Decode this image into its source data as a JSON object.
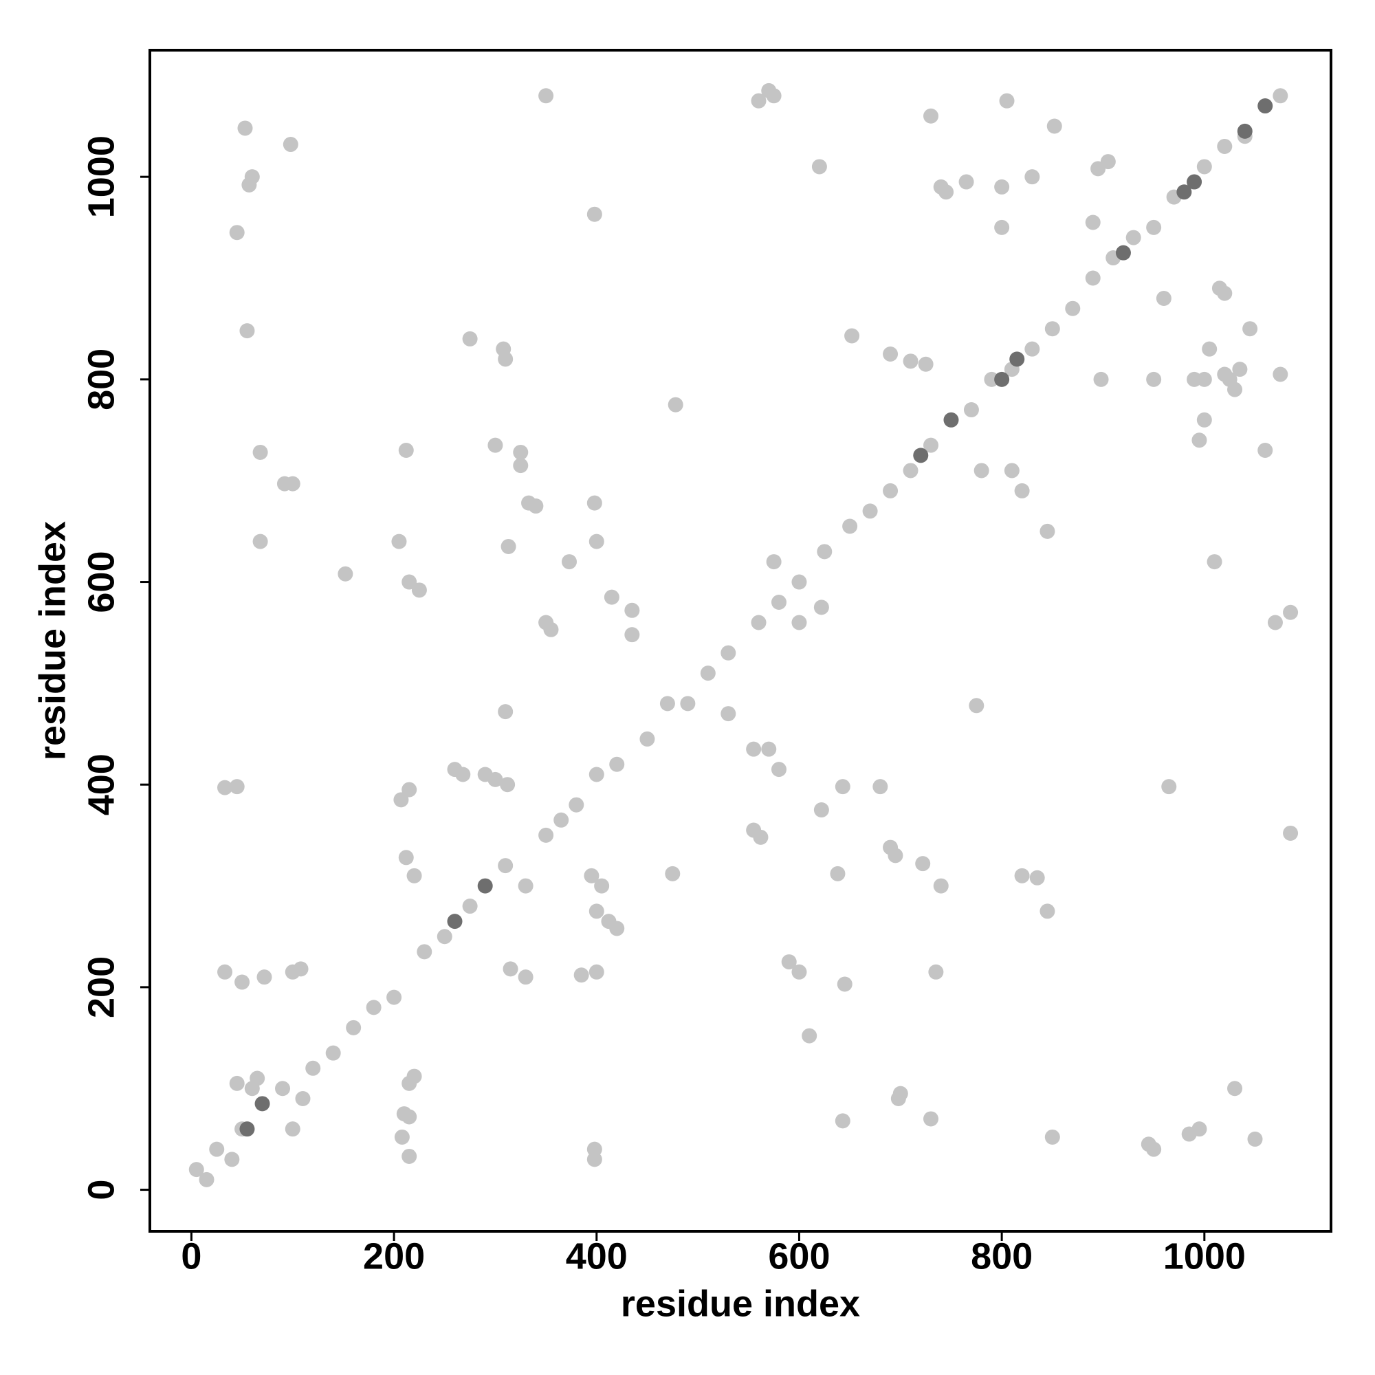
{
  "chart_data": {
    "type": "scatter",
    "x_label": "residue index",
    "y_label": "residue index",
    "xlim": [
      -41,
      1125
    ],
    "ylim": [
      -41,
      1125
    ],
    "xticks": [
      0,
      200,
      400,
      600,
      800,
      1000
    ],
    "yticks": [
      0,
      200,
      400,
      600,
      800,
      1000
    ],
    "grid": false,
    "series": [
      {
        "color": "#c4c4c4",
        "x": [
          33,
          50,
          72,
          100,
          108,
          33,
          45,
          45,
          55,
          57,
          60,
          53,
          98,
          68,
          68,
          92,
          100,
          152,
          205,
          212,
          215,
          225,
          207,
          215,
          212,
          220,
          210,
          208,
          215,
          215,
          215,
          220,
          275,
          308,
          310,
          300,
          325,
          325,
          313,
          333,
          340,
          350,
          350,
          355,
          373,
          398,
          398,
          400,
          415,
          435,
          435,
          478,
          310,
          290,
          300,
          312,
          398,
          398,
          385,
          400,
          405,
          395,
          400,
          412,
          420,
          315,
          330,
          268,
          260,
          475,
          530,
          555,
          570,
          580,
          555,
          562,
          590,
          600,
          610,
          622,
          638,
          643,
          645,
          643,
          560,
          570,
          575,
          620,
          575,
          622,
          600,
          652,
          680,
          690,
          695,
          700,
          698,
          730,
          735,
          722,
          740,
          730,
          740,
          745,
          765,
          775,
          805,
          800,
          800,
          820,
          835,
          845,
          845,
          850,
          852,
          725,
          690,
          710,
          830,
          898,
          905,
          895,
          950,
          945,
          950,
          960,
          965,
          985,
          995,
          995,
          1000,
          1000,
          990,
          1005,
          1010,
          1020,
          1025,
          1030,
          1035,
          1045,
          1030,
          1050,
          1060,
          1075,
          1070,
          1085,
          1085,
          1015,
          1020,
          5,
          15,
          25,
          40,
          50,
          60,
          65,
          45,
          90,
          100,
          110,
          120,
          140,
          160,
          180,
          200,
          230,
          250,
          275,
          310,
          330,
          350,
          365,
          380,
          400,
          420,
          450,
          470,
          490,
          510,
          530,
          560,
          580,
          600,
          625,
          650,
          670,
          690,
          710,
          730,
          770,
          790,
          810,
          830,
          850,
          870,
          890,
          910,
          930,
          950,
          970,
          1000,
          1020,
          1040,
          1075,
          780,
          810,
          820,
          890
        ],
        "y": [
          215,
          205,
          210,
          215,
          218,
          397,
          398,
          945,
          848,
          992,
          1000,
          1048,
          1032,
          728,
          640,
          697,
          697,
          608,
          640,
          730,
          600,
          592,
          385,
          395,
          328,
          310,
          75,
          52,
          33,
          72,
          105,
          112,
          840,
          830,
          820,
          735,
          728,
          715,
          635,
          678,
          675,
          1080,
          560,
          553,
          620,
          963,
          678,
          640,
          585,
          572,
          548,
          775,
          472,
          410,
          405,
          400,
          40,
          30,
          212,
          215,
          300,
          310,
          275,
          265,
          258,
          218,
          210,
          410,
          415,
          312,
          470,
          435,
          435,
          415,
          355,
          348,
          225,
          215,
          152,
          375,
          312,
          398,
          203,
          68,
          1075,
          1085,
          1080,
          1010,
          620,
          575,
          560,
          843,
          398,
          338,
          330,
          95,
          90,
          70,
          215,
          322,
          300,
          1060,
          990,
          985,
          995,
          478,
          1075,
          950,
          990,
          310,
          308,
          275,
          650,
          52,
          1050,
          815,
          825,
          818,
          1000,
          800,
          1015,
          1008,
          40,
          45,
          800,
          880,
          398,
          55,
          60,
          740,
          760,
          800,
          800,
          830,
          620,
          805,
          800,
          790,
          810,
          850,
          100,
          50,
          730,
          805,
          560,
          570,
          352,
          890,
          885,
          20,
          10,
          40,
          30,
          60,
          100,
          110,
          105,
          100,
          60,
          90,
          120,
          135,
          160,
          180,
          190,
          235,
          250,
          280,
          320,
          300,
          350,
          365,
          380,
          410,
          420,
          445,
          480,
          480,
          510,
          530,
          560,
          580,
          600,
          630,
          655,
          670,
          690,
          710,
          735,
          770,
          800,
          810,
          830,
          850,
          870,
          900,
          920,
          940,
          950,
          980,
          1010,
          1030,
          1040,
          1080,
          710,
          710,
          690,
          955
        ]
      },
      {
        "color": "#6e6e6e",
        "x": [
          70,
          55,
          290,
          260,
          800,
          815,
          920,
          990,
          980,
          1040,
          1060,
          750,
          720
        ],
        "y": [
          85,
          60,
          300,
          265,
          800,
          820,
          925,
          995,
          985,
          1045,
          1070,
          760,
          725
        ]
      }
    ]
  }
}
